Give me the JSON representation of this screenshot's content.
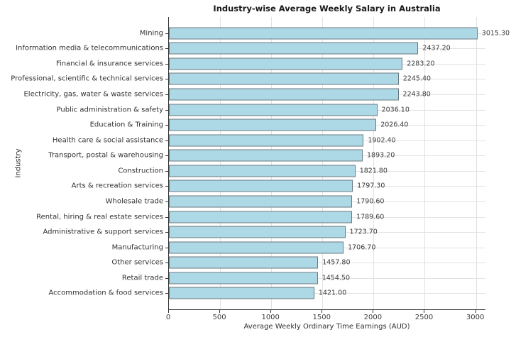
{
  "chart_data": {
    "type": "bar",
    "orientation": "horizontal",
    "title": "Industry-wise Average Weekly Salary in Australia",
    "xlabel": "Average Weekly Ordinary Time Earnings (AUD)",
    "ylabel": "Industry",
    "categories": [
      "Mining",
      "Information media & telecommunications",
      "Financial & insurance services",
      "Professional, scientific & technical services",
      "Electricity, gas, water & waste services",
      "Public administration & safety",
      "Education & Training",
      "Health care & social assistance",
      "Transport, postal & warehousing",
      "Construction",
      "Arts & recreation services",
      "Wholesale trade",
      "Rental, hiring & real estate services",
      "Administrative & support services",
      "Manufacturing",
      "Other services",
      "Retail trade",
      "Accommodation & food services"
    ],
    "values": [
      3015.3,
      2437.2,
      2283.2,
      2245.4,
      2243.8,
      2036.1,
      2026.4,
      1902.4,
      1893.2,
      1821.8,
      1797.3,
      1790.6,
      1789.6,
      1723.7,
      1706.7,
      1457.8,
      1454.5,
      1421.0
    ],
    "value_labels": [
      "3015.30",
      "2437.20",
      "2283.20",
      "2245.40",
      "2243.80",
      "2036.10",
      "2026.40",
      "1902.40",
      "1893.20",
      "1821.80",
      "1797.30",
      "1790.60",
      "1789.60",
      "1723.70",
      "1706.70",
      "1457.80",
      "1454.50",
      "1421.00"
    ],
    "x_ticks": [
      0,
      500,
      1000,
      1500,
      2000,
      2500,
      3000
    ],
    "x_tick_labels": [
      "0",
      "500",
      "1000",
      "1500",
      "2000",
      "2500",
      "3000"
    ],
    "xlim": [
      0,
      3100
    ],
    "grid": true,
    "legend": "none",
    "colors": {
      "bar_fill": "#ADD8E6",
      "bar_edge": "#6b7a80",
      "grid_line": "#e2e2e2",
      "axis_line": "#333333",
      "title_text": "#1a1a1a",
      "label_text": "#303030",
      "value_text": "#3c3c3c",
      "background": "#ffffff"
    }
  }
}
